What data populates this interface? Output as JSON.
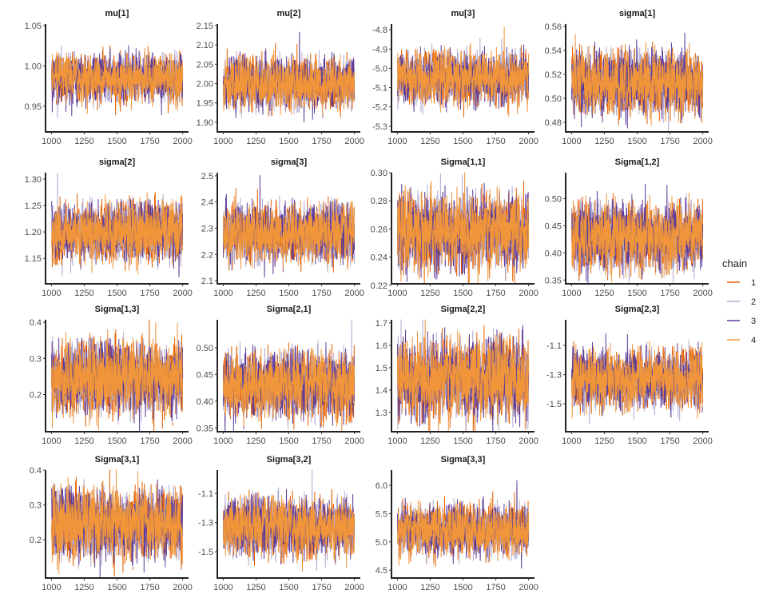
{
  "chart_data": {
    "type": "line",
    "description_kind": "trace",
    "x_range": [
      1000,
      2000
    ],
    "xticks": [
      1000,
      1250,
      1500,
      1750,
      2000
    ],
    "grid": false,
    "legend": {
      "title": "chain",
      "placement": "right",
      "entries": [
        {
          "label": "1",
          "color": "#E66101"
        },
        {
          "label": "2",
          "color": "#B2ABD2"
        },
        {
          "label": "3",
          "color": "#5E3C99"
        },
        {
          "label": "4",
          "color": "#F0953A"
        }
      ]
    },
    "panels": [
      {
        "title": "mu[1]",
        "ylim": [
          0.918,
          1.052
        ],
        "yticks": [
          "0.95",
          "1.00",
          "1.05"
        ],
        "mean": 0.985,
        "sd": 0.013
      },
      {
        "title": "mu[2]",
        "ylim": [
          1.875,
          2.154
        ],
        "yticks": [
          "1.90",
          "1.95",
          "2.00",
          "2.05",
          "2.10",
          "2.15"
        ],
        "mean": 2.0,
        "sd": 0.03
      },
      {
        "title": "mu[3]",
        "ylim": [
          -5.33,
          -4.77
        ],
        "yticks": [
          "-5.3",
          "-5.2",
          "-5.1",
          "-5.0",
          "-4.9",
          "-4.8"
        ],
        "mean": -5.05,
        "sd": 0.06
      },
      {
        "title": "sigma[1]",
        "ylim": [
          0.472,
          0.562
        ],
        "yticks": [
          "0.48",
          "0.50",
          "0.52",
          "0.54",
          "0.56"
        ],
        "mean": 0.513,
        "sd": 0.012
      },
      {
        "title": "sigma[2]",
        "ylim": [
          1.102,
          1.312
        ],
        "yticks": [
          "1.15",
          "1.20",
          "1.25",
          "1.30"
        ],
        "mean": 1.2,
        "sd": 0.025
      },
      {
        "title": "sigma[3]",
        "ylim": [
          2.088,
          2.512
        ],
        "yticks": [
          "2.1",
          "2.2",
          "2.3",
          "2.4",
          "2.5"
        ],
        "mean": 2.28,
        "sd": 0.05
      },
      {
        "title": "Sigma[1,1]",
        "ylim": [
          0.221,
          0.3
        ],
        "yticks": [
          "0.22",
          "0.24",
          "0.26",
          "0.28",
          "0.30"
        ],
        "mean": 0.258,
        "sd": 0.012
      },
      {
        "title": "Sigma[1,2]",
        "ylim": [
          0.343,
          0.548
        ],
        "yticks": [
          "0.35",
          "0.40",
          "0.45",
          "0.50"
        ],
        "mean": 0.43,
        "sd": 0.028
      },
      {
        "title": "Sigma[1,3]",
        "ylim": [
          0.097,
          0.407
        ],
        "yticks": [
          "0.2",
          "0.3",
          "0.4"
        ],
        "mean": 0.245,
        "sd": 0.045
      },
      {
        "title": "Sigma[2,1]",
        "ylim": [
          0.343,
          0.552
        ],
        "yticks": [
          "0.35",
          "0.40",
          "0.45",
          "0.50"
        ],
        "mean": 0.43,
        "sd": 0.028
      },
      {
        "title": "Sigma[2,2]",
        "ylim": [
          1.214,
          1.714
        ],
        "yticks": [
          "1.3",
          "1.4",
          "1.5",
          "1.6",
          "1.7"
        ],
        "mean": 1.45,
        "sd": 0.08
      },
      {
        "title": "Sigma[2,3]",
        "ylim": [
          -1.69,
          -0.925
        ],
        "yticks": [
          "-1.5",
          "-1.3",
          "-1.1"
        ],
        "mean": -1.33,
        "sd": 0.09
      },
      {
        "title": "Sigma[3,1]",
        "ylim": [
          0.09,
          0.4
        ],
        "yticks": [
          "0.2",
          "0.3",
          "0.4"
        ],
        "mean": 0.245,
        "sd": 0.045
      },
      {
        "title": "Sigma[3,2]",
        "ylim": [
          -1.68,
          -0.94
        ],
        "yticks": [
          "-1.5",
          "-1.3",
          "-1.1"
        ],
        "mean": -1.33,
        "sd": 0.09
      },
      {
        "title": "Sigma[3,3]",
        "ylim": [
          4.36,
          6.27
        ],
        "yticks": [
          "4.5",
          "5.0",
          "5.5",
          "6.0"
        ],
        "mean": 5.2,
        "sd": 0.2
      }
    ]
  }
}
